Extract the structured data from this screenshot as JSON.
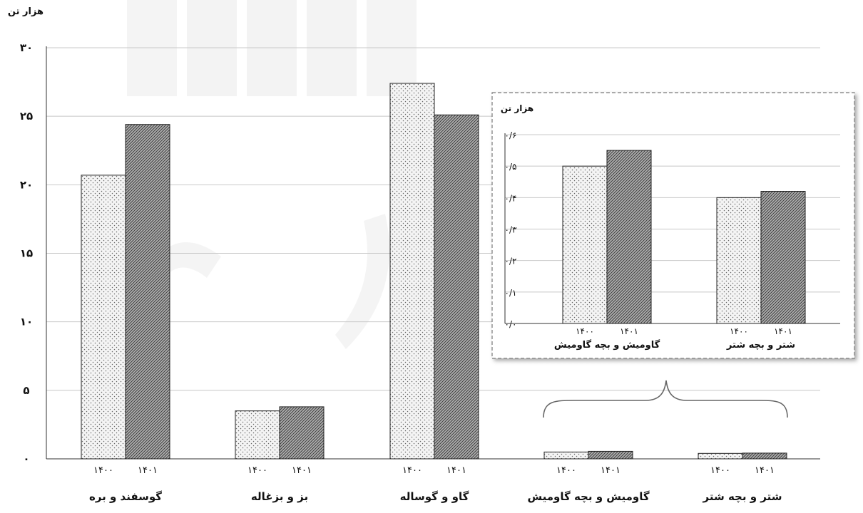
{
  "chart_data": [
    {
      "type": "bar",
      "ylabel": "هزار تن",
      "ylim": [
        0,
        30
      ],
      "yticks": [
        "۰",
        "۵",
        "۱۰",
        "۱۵",
        "۲۰",
        "۲۵",
        "۳۰"
      ],
      "grid": true,
      "categories": [
        "گوسفند و بره",
        "بز و بزغاله",
        "گاو و گوساله",
        "گاومیش و بچه گاومیش",
        "شتر و بچه شتر"
      ],
      "series": [
        {
          "year_label": "۱۴۰۰",
          "pattern": "dotted",
          "values": [
            20.7,
            3.5,
            27.4,
            0.5,
            0.4
          ]
        },
        {
          "year_label": "۱۴۰۱",
          "pattern": "hatched",
          "values": [
            24.4,
            3.8,
            25.1,
            0.55,
            0.42
          ]
        }
      ]
    },
    {
      "type": "bar",
      "inset": true,
      "ylabel": "هزار تن",
      "ylim": [
        0,
        0.6
      ],
      "yticks": [
        "۰/۰",
        "۰/۱",
        "۰/۲",
        "۰/۳",
        "۰/۴",
        "۰/۵",
        "۰/۶"
      ],
      "grid": true,
      "categories": [
        "گاومیش و بچه گاومیش",
        "شتر و بچه شتر"
      ],
      "series": [
        {
          "year_label": "۱۴۰۰",
          "pattern": "dotted",
          "values": [
            0.5,
            0.4
          ]
        },
        {
          "year_label": "۱۴۰۱",
          "pattern": "hatched",
          "values": [
            0.55,
            0.42
          ]
        }
      ]
    }
  ]
}
